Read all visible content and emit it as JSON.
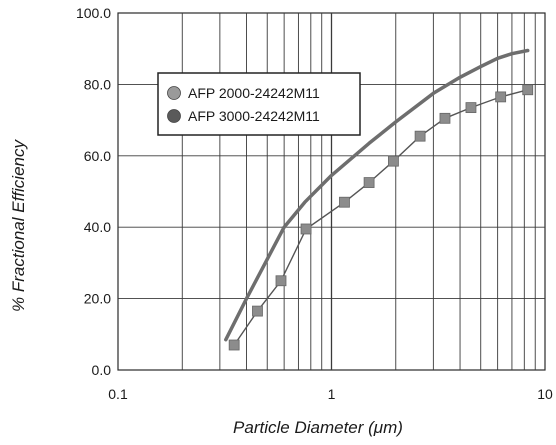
{
  "chart_data": {
    "type": "line",
    "title": "",
    "xlabel": "Particle Diameter (μm)",
    "ylabel": "% Fractional Efficiency",
    "xscale": "log",
    "xlim": [
      0.1,
      10
    ],
    "ylim": [
      0,
      100
    ],
    "x_ticks": [
      "0.1",
      "1",
      "10"
    ],
    "y_ticks": [
      "0.0",
      "20.0",
      "40.0",
      "60.0",
      "80.0",
      "100.0"
    ],
    "grid": true,
    "legend_position": "upper-left",
    "series": [
      {
        "name": "AFP 2000-24242M11",
        "color": "#8c8c8c",
        "marker": "square",
        "x": [
          0.35,
          0.45,
          0.58,
          0.76,
          1.15,
          1.5,
          1.95,
          2.6,
          3.4,
          4.5,
          6.2,
          8.3
        ],
        "y": [
          7,
          16.5,
          25,
          39.5,
          47,
          52.5,
          58.5,
          65.5,
          70.5,
          73.5,
          76.5,
          78.5
        ]
      },
      {
        "name": "AFP 3000-24242M11",
        "color": "#6e6e6e",
        "marker": "none",
        "x": [
          0.32,
          0.4,
          0.5,
          0.6,
          0.75,
          1.0,
          1.5,
          2.0,
          3.0,
          4.0,
          5.0,
          6.0,
          7.0,
          8.3
        ],
        "y": [
          8.5,
          20,
          31,
          40,
          47,
          54.5,
          63.5,
          69.5,
          77.5,
          82,
          85,
          87.3,
          88.6,
          89.5
        ]
      }
    ]
  }
}
